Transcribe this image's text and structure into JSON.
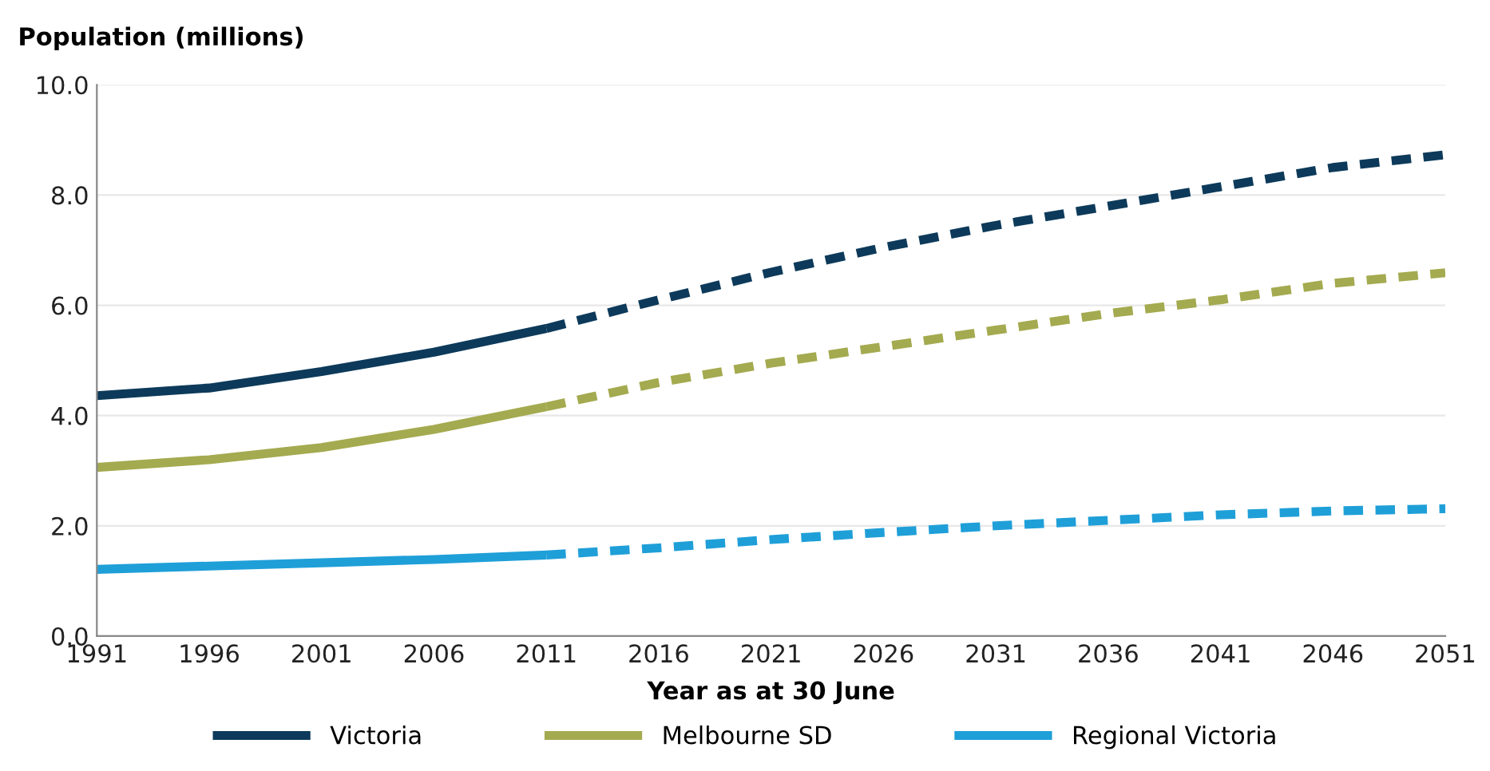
{
  "chart_data": {
    "type": "line",
    "ylabel": "Population (millions)",
    "xlabel": "Year as at 30 June",
    "xlim": [
      1991,
      2051
    ],
    "xticks": [
      1991,
      1996,
      2001,
      2006,
      2011,
      2016,
      2021,
      2026,
      2031,
      2036,
      2041,
      2046,
      2051
    ],
    "ylim": [
      0,
      10
    ],
    "yticks": [
      {
        "value": 0,
        "label": "0.0"
      },
      {
        "value": 2,
        "label": "2.0"
      },
      {
        "value": 4,
        "label": "4.0"
      },
      {
        "value": 6,
        "label": "6.0"
      },
      {
        "value": 8,
        "label": "8.0"
      },
      {
        "value": 10,
        "label": "10.0"
      }
    ],
    "grid": "y",
    "legend": "bottom",
    "marker": "none",
    "series": [
      {
        "name": "Victoria",
        "color": "#0d3a5a",
        "line_style": "solid",
        "x": [
          1991,
          1996,
          2001,
          2006,
          2011
        ],
        "values": [
          4.36,
          4.5,
          4.8,
          5.15,
          5.58
        ]
      },
      {
        "color": "#0d3a5a",
        "line_style": "dashed",
        "x": [
          2011,
          2016,
          2021,
          2026,
          2031,
          2036,
          2041,
          2046,
          2051
        ],
        "values": [
          5.58,
          6.1,
          6.6,
          7.05,
          7.45,
          7.8,
          8.15,
          8.5,
          8.73
        ]
      },
      {
        "name": "Melbourne SD",
        "color": "#a4aa4f",
        "line_style": "solid",
        "x": [
          1991,
          1996,
          2001,
          2006,
          2011
        ],
        "values": [
          3.06,
          3.2,
          3.42,
          3.75,
          4.16
        ]
      },
      {
        "color": "#a4aa4f",
        "line_style": "dashed",
        "x": [
          2011,
          2016,
          2021,
          2026,
          2031,
          2036,
          2041,
          2046,
          2051
        ],
        "values": [
          4.16,
          4.6,
          4.95,
          5.25,
          5.55,
          5.85,
          6.1,
          6.4,
          6.59
        ]
      },
      {
        "name": "Regional Victoria",
        "color": "#1f9fd8",
        "line_style": "solid",
        "x": [
          1991,
          1996,
          2001,
          2006,
          2011
        ],
        "values": [
          1.21,
          1.27,
          1.33,
          1.39,
          1.47
        ]
      },
      {
        "color": "#1f9fd8",
        "line_style": "dashed",
        "x": [
          2011,
          2016,
          2021,
          2026,
          2031,
          2036,
          2041,
          2046,
          2051
        ],
        "values": [
          1.47,
          1.6,
          1.75,
          1.88,
          2.0,
          2.1,
          2.2,
          2.27,
          2.31
        ]
      }
    ]
  }
}
